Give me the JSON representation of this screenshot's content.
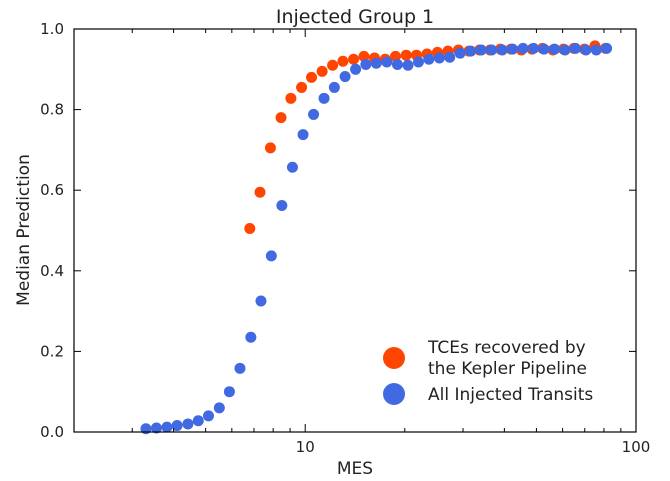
{
  "chart_data": {
    "type": "scatter",
    "title": "Injected Group 1",
    "xlabel": "MES",
    "ylabel": "Median Prediction",
    "xscale": "log",
    "xlim": [
      2,
      100
    ],
    "ylim": [
      0.0,
      1.0
    ],
    "x_ticks": [
      {
        "value": 10,
        "label": "10"
      },
      {
        "value": 100,
        "label": "100"
      }
    ],
    "y_ticks": [
      {
        "value": 0.0,
        "label": "0.0"
      },
      {
        "value": 0.2,
        "label": "0.2"
      },
      {
        "value": 0.4,
        "label": "0.4"
      },
      {
        "value": 0.6,
        "label": "0.6"
      },
      {
        "value": 0.8,
        "label": "0.8"
      },
      {
        "value": 1.0,
        "label": "1.0"
      }
    ],
    "grid": false,
    "legend_position": "lower-right",
    "series": [
      {
        "name": "TCEs recovered by\nthe Kepler Pipeline",
        "color": "#FF4500",
        "points": [
          [
            6.8,
            0.505
          ],
          [
            7.3,
            0.595
          ],
          [
            7.85,
            0.705
          ],
          [
            8.45,
            0.78
          ],
          [
            9.05,
            0.828
          ],
          [
            9.75,
            0.855
          ],
          [
            10.45,
            0.88
          ],
          [
            11.25,
            0.895
          ],
          [
            12.1,
            0.91
          ],
          [
            13.0,
            0.92
          ],
          [
            14.0,
            0.925
          ],
          [
            15.05,
            0.932
          ],
          [
            16.2,
            0.928
          ],
          [
            17.45,
            0.925
          ],
          [
            18.75,
            0.932
          ],
          [
            20.2,
            0.935
          ],
          [
            21.7,
            0.935
          ],
          [
            23.35,
            0.938
          ],
          [
            25.1,
            0.942
          ],
          [
            27.0,
            0.945
          ],
          [
            29.05,
            0.948
          ],
          [
            31.25,
            0.945
          ],
          [
            33.65,
            0.948
          ],
          [
            36.2,
            0.948
          ],
          [
            38.9,
            0.95
          ],
          [
            41.9,
            0.95
          ],
          [
            45.05,
            0.948
          ],
          [
            48.5,
            0.95
          ],
          [
            52.15,
            0.952
          ],
          [
            56.1,
            0.948
          ],
          [
            60.35,
            0.95
          ],
          [
            64.9,
            0.952
          ],
          [
            69.85,
            0.95
          ],
          [
            75.15,
            0.958
          ],
          [
            80.85,
            0.952
          ]
        ]
      },
      {
        "name": "All Injected Transits",
        "color": "#4169E1",
        "points": [
          [
            3.3,
            0.008
          ],
          [
            3.55,
            0.01
          ],
          [
            3.82,
            0.012
          ],
          [
            4.1,
            0.016
          ],
          [
            4.42,
            0.02
          ],
          [
            4.75,
            0.028
          ],
          [
            5.1,
            0.04
          ],
          [
            5.5,
            0.06
          ],
          [
            5.9,
            0.1
          ],
          [
            6.35,
            0.158
          ],
          [
            6.85,
            0.235
          ],
          [
            7.35,
            0.325
          ],
          [
            7.9,
            0.437
          ],
          [
            8.5,
            0.562
          ],
          [
            9.15,
            0.657
          ],
          [
            9.85,
            0.738
          ],
          [
            10.6,
            0.788
          ],
          [
            11.4,
            0.828
          ],
          [
            12.25,
            0.855
          ],
          [
            13.2,
            0.882
          ],
          [
            14.2,
            0.9
          ],
          [
            15.25,
            0.912
          ],
          [
            16.4,
            0.915
          ],
          [
            17.65,
            0.918
          ],
          [
            19.0,
            0.912
          ],
          [
            20.45,
            0.91
          ],
          [
            22.0,
            0.918
          ],
          [
            23.65,
            0.925
          ],
          [
            25.45,
            0.928
          ],
          [
            27.35,
            0.93
          ],
          [
            29.4,
            0.94
          ],
          [
            31.65,
            0.945
          ],
          [
            34.05,
            0.948
          ],
          [
            36.6,
            0.948
          ],
          [
            39.4,
            0.948
          ],
          [
            42.35,
            0.95
          ],
          [
            45.55,
            0.952
          ],
          [
            49.0,
            0.952
          ],
          [
            52.7,
            0.95
          ],
          [
            56.7,
            0.95
          ],
          [
            61.0,
            0.948
          ],
          [
            65.6,
            0.952
          ],
          [
            70.55,
            0.948
          ],
          [
            75.85,
            0.948
          ],
          [
            81.5,
            0.952
          ]
        ]
      }
    ]
  }
}
